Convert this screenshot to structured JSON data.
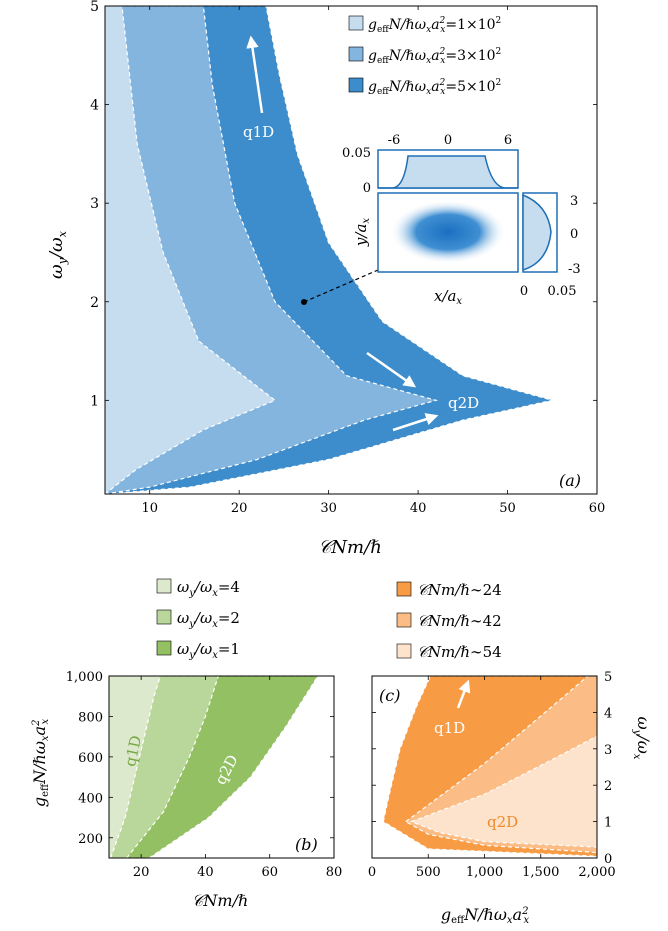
{
  "chart_data": [
    {
      "panel": "(a)",
      "type": "area",
      "xlabel": "𝒞Nm/ℏ",
      "ylabel": "ωy/ωx",
      "xlim": [
        5,
        60
      ],
      "ylim": [
        0.05,
        5
      ],
      "xticks": [
        10,
        20,
        30,
        40,
        50,
        60
      ],
      "yticks": [
        1,
        2,
        3,
        4,
        5
      ],
      "legend": "top-right",
      "series": [
        {
          "name": "g_eff N/ℏωx ax² = 5×10²",
          "color": "#3d8ccb",
          "points": [
            [
              5,
              0.05
            ],
            [
              14.5,
              0.12
            ],
            [
              30,
              0.4
            ],
            [
              45,
              0.8
            ],
            [
              55,
              1.0
            ],
            [
              45,
              1.25
            ],
            [
              36,
              1.8
            ],
            [
              30,
              2.6
            ],
            [
              26.5,
              3.5
            ],
            [
              24.5,
              4.3
            ],
            [
              23,
              5
            ],
            [
              5,
              5
            ]
          ]
        },
        {
          "name": "g_eff N/ℏωx ax² = 3×10²",
          "color": "#84b5de",
          "points": [
            [
              5,
              0.05
            ],
            [
              10,
              0.12
            ],
            [
              22,
              0.4
            ],
            [
              34,
              0.8
            ],
            [
              42,
              1.0
            ],
            [
              32,
              1.25
            ],
            [
              24,
              2.0
            ],
            [
              19.5,
              3.0
            ],
            [
              17,
              4.2
            ],
            [
              16,
              5
            ],
            [
              5,
              5
            ]
          ]
        },
        {
          "name": "g_eff N/ℏωx ax² = 1×10²",
          "color": "#c6ddf0",
          "points": [
            [
              5,
              0.05
            ],
            [
              8.5,
              0.3
            ],
            [
              16,
              0.7
            ],
            [
              24,
              1.0
            ],
            [
              15.5,
              1.6
            ],
            [
              11.5,
              2.5
            ],
            [
              8.6,
              3.6
            ],
            [
              6.9,
              5
            ],
            [
              5,
              5
            ]
          ]
        }
      ],
      "annotations": [
        "q1D",
        "q2D",
        "(a)"
      ],
      "marker": {
        "x": 27.1,
        "y": 2.0
      },
      "inset": {
        "xlabel": "x/ax",
        "ylabel": "y/ay",
        "top_xticks": [
          "-6",
          "0",
          "6"
        ],
        "top_yticks": [
          "0.05",
          "0"
        ],
        "right_xticks": [
          "0",
          "0.05"
        ],
        "right_yticks": [
          "3",
          "0",
          "-3"
        ],
        "top_profile": {
          "x": [
            -6,
            -5,
            -4,
            4,
            5,
            6
          ],
          "y": [
            0,
            0,
            0.042,
            0.042,
            0,
            0
          ]
        },
        "right_profile": {
          "y": [
            3,
            0,
            -3
          ],
          "x": [
            0,
            0.04,
            0
          ]
        }
      }
    },
    {
      "panel": "(b)",
      "type": "area",
      "xlabel": "𝒞Nm/ℏ",
      "ylabel": "geffN/ℏωxax²",
      "xlim": [
        10,
        80
      ],
      "ylim": [
        100,
        1000
      ],
      "xticks": [
        20,
        40,
        60,
        80
      ],
      "yticks": [
        200,
        400,
        600,
        800,
        1000
      ],
      "yticklabels": [
        "200",
        "400",
        "600",
        "800",
        "1,000"
      ],
      "legend": "top",
      "series": [
        {
          "name": "ωy/ωx=1",
          "color": "#93c062",
          "points": [
            [
              22.5,
              100
            ],
            [
              41,
              300
            ],
            [
              54,
              500
            ],
            [
              65,
              750
            ],
            [
              75,
              1000
            ],
            [
              10,
              1000
            ],
            [
              10,
              100
            ]
          ]
        },
        {
          "name": "ωy/ωx=2",
          "color": "#bad79b",
          "points": [
            [
              15.5,
              100
            ],
            [
              27,
              330
            ],
            [
              35,
              600
            ],
            [
              40,
              800
            ],
            [
              44,
              1000
            ],
            [
              10,
              1000
            ],
            [
              10,
              100
            ]
          ]
        },
        {
          "name": "ωy/ωx=4",
          "color": "#dde9cc",
          "points": [
            [
              10.5,
              100
            ],
            [
              15,
              300
            ],
            [
              19.5,
              600
            ],
            [
              24,
              900
            ],
            [
              26,
              1000
            ],
            [
              10,
              1000
            ],
            [
              10,
              100
            ]
          ]
        }
      ],
      "annotations": [
        "q1D",
        "q2D",
        "(b)"
      ]
    },
    {
      "panel": "(c)",
      "type": "area",
      "xlabel": "geffN/ℏωxax²",
      "ylabel": "ωy/ωx",
      "xlim": [
        0,
        2000
      ],
      "ylim": [
        0,
        5
      ],
      "xticks": [
        0,
        500,
        1000,
        1500,
        2000
      ],
      "xticklabels": [
        "0",
        "500",
        "1,000",
        "1,500",
        "2,000"
      ],
      "yticks": [
        0,
        1,
        2,
        3,
        4,
        5
      ],
      "legend": "top",
      "series": [
        {
          "name": "𝒞Nm/ℏ∼24",
          "color": "#f89b45",
          "points": [
            [
              100,
              1.0
            ],
            [
              150,
              1.7
            ],
            [
              250,
              3.0
            ],
            [
              400,
              4.2
            ],
            [
              520,
              5
            ],
            [
              2000,
              5
            ],
            [
              2000,
              0.05
            ],
            [
              500,
              0.25
            ],
            [
              100,
              1.0
            ]
          ]
        },
        {
          "name": "𝒞Nm/ℏ∼42",
          "color": "#fbbd85",
          "points": [
            [
              300,
              1.0
            ],
            [
              1000,
              2.6
            ],
            [
              1500,
              3.9
            ],
            [
              1920,
              5
            ],
            [
              2000,
              5
            ],
            [
              2000,
              0.15
            ],
            [
              1000,
              0.35
            ],
            [
              500,
              0.65
            ],
            [
              300,
              1.0
            ]
          ]
        },
        {
          "name": "𝒞Nm/ℏ∼54",
          "color": "#fde3cc",
          "points": [
            [
              350,
              1.0
            ],
            [
              1000,
              1.75
            ],
            [
              1600,
              2.7
            ],
            [
              2000,
              3.35
            ],
            [
              2000,
              0.3
            ],
            [
              1000,
              0.45
            ],
            [
              600,
              0.7
            ],
            [
              350,
              1.0
            ]
          ]
        }
      ],
      "annotations": [
        "q1D",
        "q2D",
        "(c)"
      ]
    }
  ]
}
